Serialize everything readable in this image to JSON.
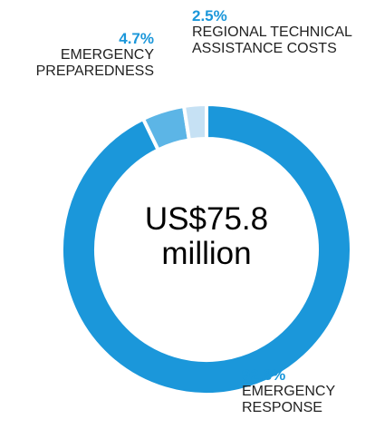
{
  "chart_data": {
    "type": "pie",
    "categories": [
      "EMERGENCY RESPONSE",
      "EMERGENCY PREPAREDNESS",
      "REGIONAL TECHNICAL ASSISTANCE COSTS"
    ],
    "values": [
      92.8,
      4.7,
      2.5
    ],
    "value_labels": [
      "92.8%",
      "4.7%",
      "2.5%"
    ],
    "colors": [
      "#1b97da",
      "#5cb5e6",
      "#c6e1f4"
    ],
    "center_label": "US$75.8 million",
    "donut": true
  }
}
